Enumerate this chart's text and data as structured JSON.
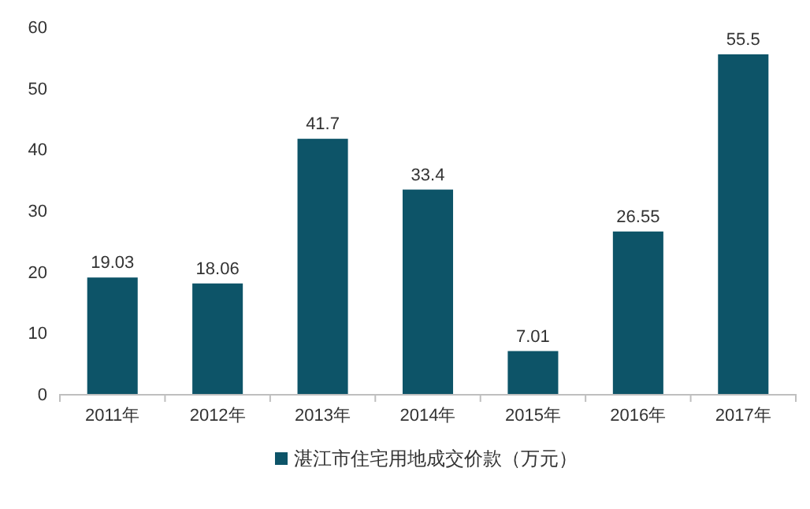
{
  "chart_data": {
    "type": "bar",
    "categories": [
      "2011年",
      "2012年",
      "2013年",
      "2014年",
      "2015年",
      "2016年",
      "2017年"
    ],
    "series": [
      {
        "name": "湛江市住宅用地成交价款（万元）",
        "color": "#0d5468",
        "values": [
          19.03,
          18.06,
          41.7,
          33.4,
          7.01,
          26.55,
          55.5
        ]
      }
    ],
    "ylim": [
      0,
      60
    ],
    "yticks": [
      0,
      10,
      20,
      30,
      40,
      50,
      60
    ],
    "data_labels": true,
    "legend": "bottom",
    "grid": false
  }
}
